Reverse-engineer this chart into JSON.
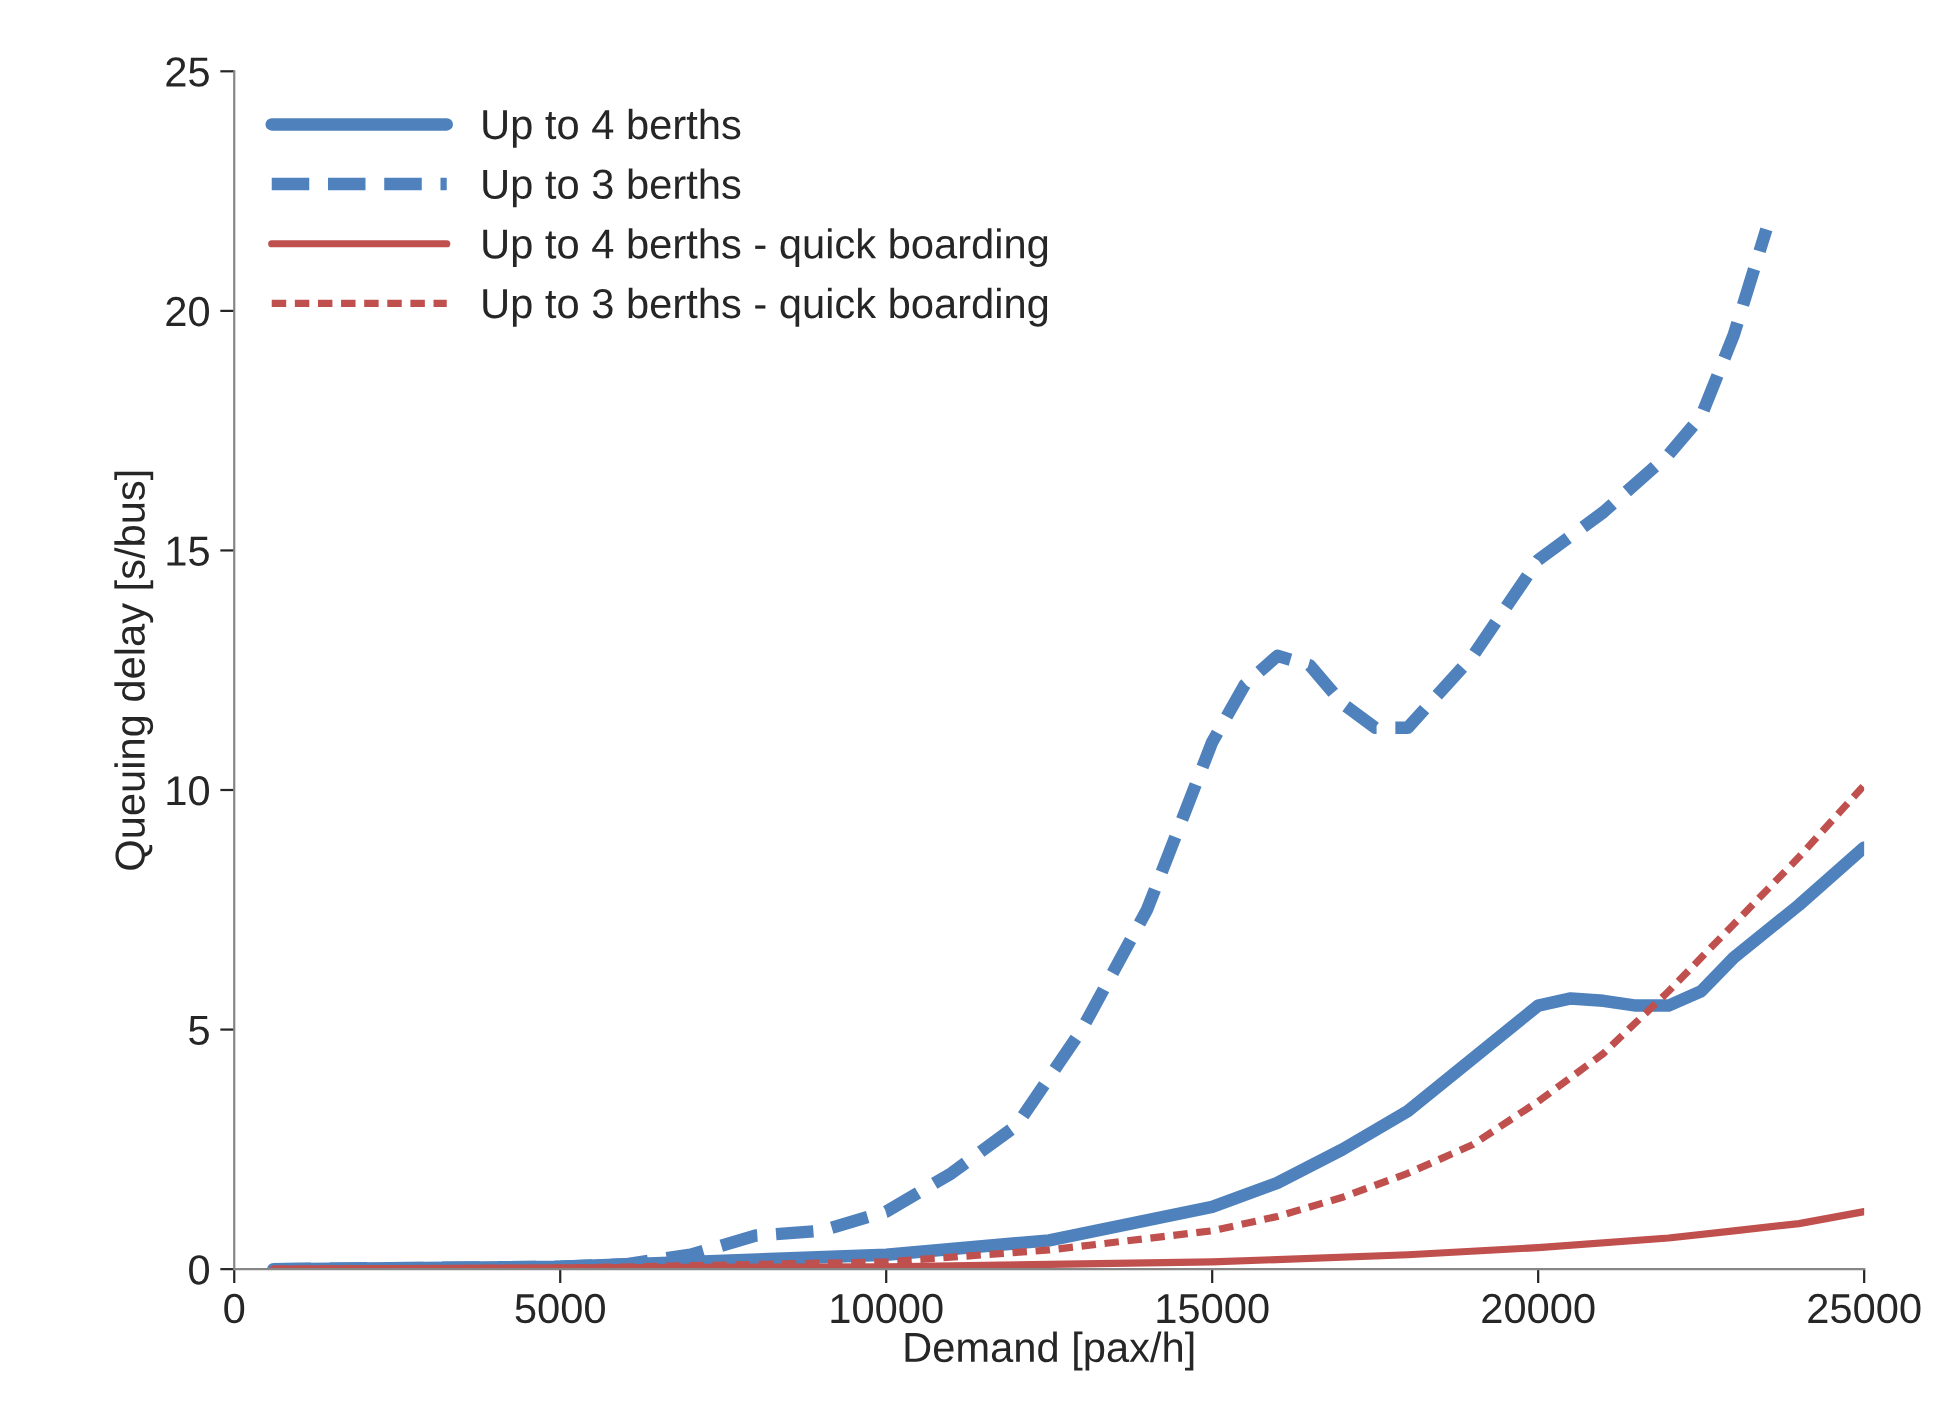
{
  "chart_data": {
    "type": "line",
    "xlabel": "Demand [pax/h]",
    "ylabel": "Queuing delay [s/bus]",
    "xlim": [
      0,
      25000
    ],
    "xticks": [
      0,
      5000,
      10000,
      15000,
      20000,
      25000
    ],
    "ylim": [
      0,
      25
    ],
    "yticks": [
      0,
      5,
      10,
      15,
      20,
      25
    ],
    "grid": false,
    "legend": "top left",
    "marker": "none",
    "series": [
      {
        "name": "Up to 4 berths",
        "color": "#4f81bd",
        "line_style": "solid",
        "x": [
          600,
          5000,
          10000,
          12500,
          15000,
          16000,
          17000,
          18000,
          19000,
          20000,
          20500,
          21000,
          21500,
          22000,
          22500,
          23000,
          24000,
          25000
        ],
        "values": [
          0,
          0.05,
          0.3,
          0.6,
          1.3,
          1.8,
          2.5,
          3.3,
          4.4,
          5.5,
          5.65,
          5.6,
          5.5,
          5.5,
          5.8,
          6.5,
          7.6,
          8.8
        ]
      },
      {
        "name": "Up to 3 berths",
        "color": "#4f81bd",
        "line_style": "dashed",
        "x": [
          600,
          5000,
          6000,
          7000,
          8000,
          9000,
          10000,
          11000,
          12000,
          13000,
          14000,
          15000,
          15500,
          16000,
          16500,
          17000,
          17500,
          18000,
          19000,
          20000,
          21000,
          22000,
          22500,
          23000,
          23500
        ],
        "values": [
          0,
          0.05,
          0.1,
          0.3,
          0.7,
          0.8,
          1.2,
          2.0,
          3.0,
          5.0,
          7.5,
          11.0,
          12.2,
          12.8,
          12.6,
          11.8,
          11.3,
          11.3,
          12.8,
          14.8,
          15.8,
          17.0,
          17.8,
          19.5,
          21.7
        ]
      },
      {
        "name": "Up to 4 berths - quick boarding",
        "color": "#c0504d",
        "line_style": "solid",
        "x": [
          600,
          10000,
          15000,
          18000,
          20000,
          22000,
          23000,
          24000,
          25000
        ],
        "values": [
          0,
          0.05,
          0.15,
          0.3,
          0.45,
          0.65,
          0.8,
          0.95,
          1.2
        ]
      },
      {
        "name": "Up to 3 berths - quick boarding",
        "color": "#c0504d",
        "line_style": "dotted",
        "x": [
          600,
          5000,
          10000,
          12500,
          15000,
          16000,
          17000,
          18000,
          19000,
          20000,
          21000,
          22000,
          23000,
          24000,
          25000
        ],
        "values": [
          0,
          0.02,
          0.15,
          0.4,
          0.8,
          1.1,
          1.5,
          2.0,
          2.6,
          3.5,
          4.5,
          5.8,
          7.2,
          8.6,
          10.1
        ]
      }
    ]
  }
}
